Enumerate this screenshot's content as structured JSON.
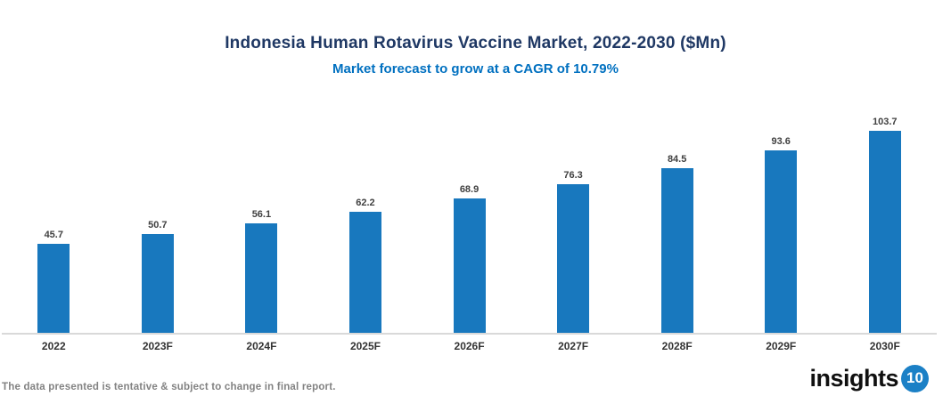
{
  "header": {
    "title": "Indonesia Human Rotavirus Vaccine Market, 2022-2030 ($Mn)",
    "subtitle": "Market forecast to grow at a CAGR of 10.79%"
  },
  "chart_data": {
    "type": "bar",
    "categories": [
      "2022",
      "2023F",
      "2024F",
      "2025F",
      "2026F",
      "2027F",
      "2028F",
      "2029F",
      "2030F"
    ],
    "values": [
      45.7,
      50.7,
      56.1,
      62.2,
      68.9,
      76.3,
      84.5,
      93.6,
      103.7
    ],
    "title": "Indonesia Human Rotavirus Vaccine Market, 2022-2030 ($Mn)",
    "subtitle": "Market forecast to grow at a CAGR of 10.79%",
    "xlabel": "",
    "ylabel": "",
    "ylim": [
      0,
      120
    ],
    "grid": false,
    "legend": false,
    "value_labels_shown": true,
    "bar_color": "#1878BE"
  },
  "footer": {
    "disclaimer": "The data presented is tentative & subject to change in final report.",
    "logo_text": "insights",
    "logo_badge": "10"
  },
  "colors": {
    "title": "#1F3864",
    "subtitle": "#0070C0",
    "bar": "#1878BE",
    "value_label": "#404040",
    "axis_label": "#333333",
    "axis_line": "#D9D9D9",
    "disclaimer": "#828282",
    "logo_badge_bg": "#1B80C6"
  }
}
